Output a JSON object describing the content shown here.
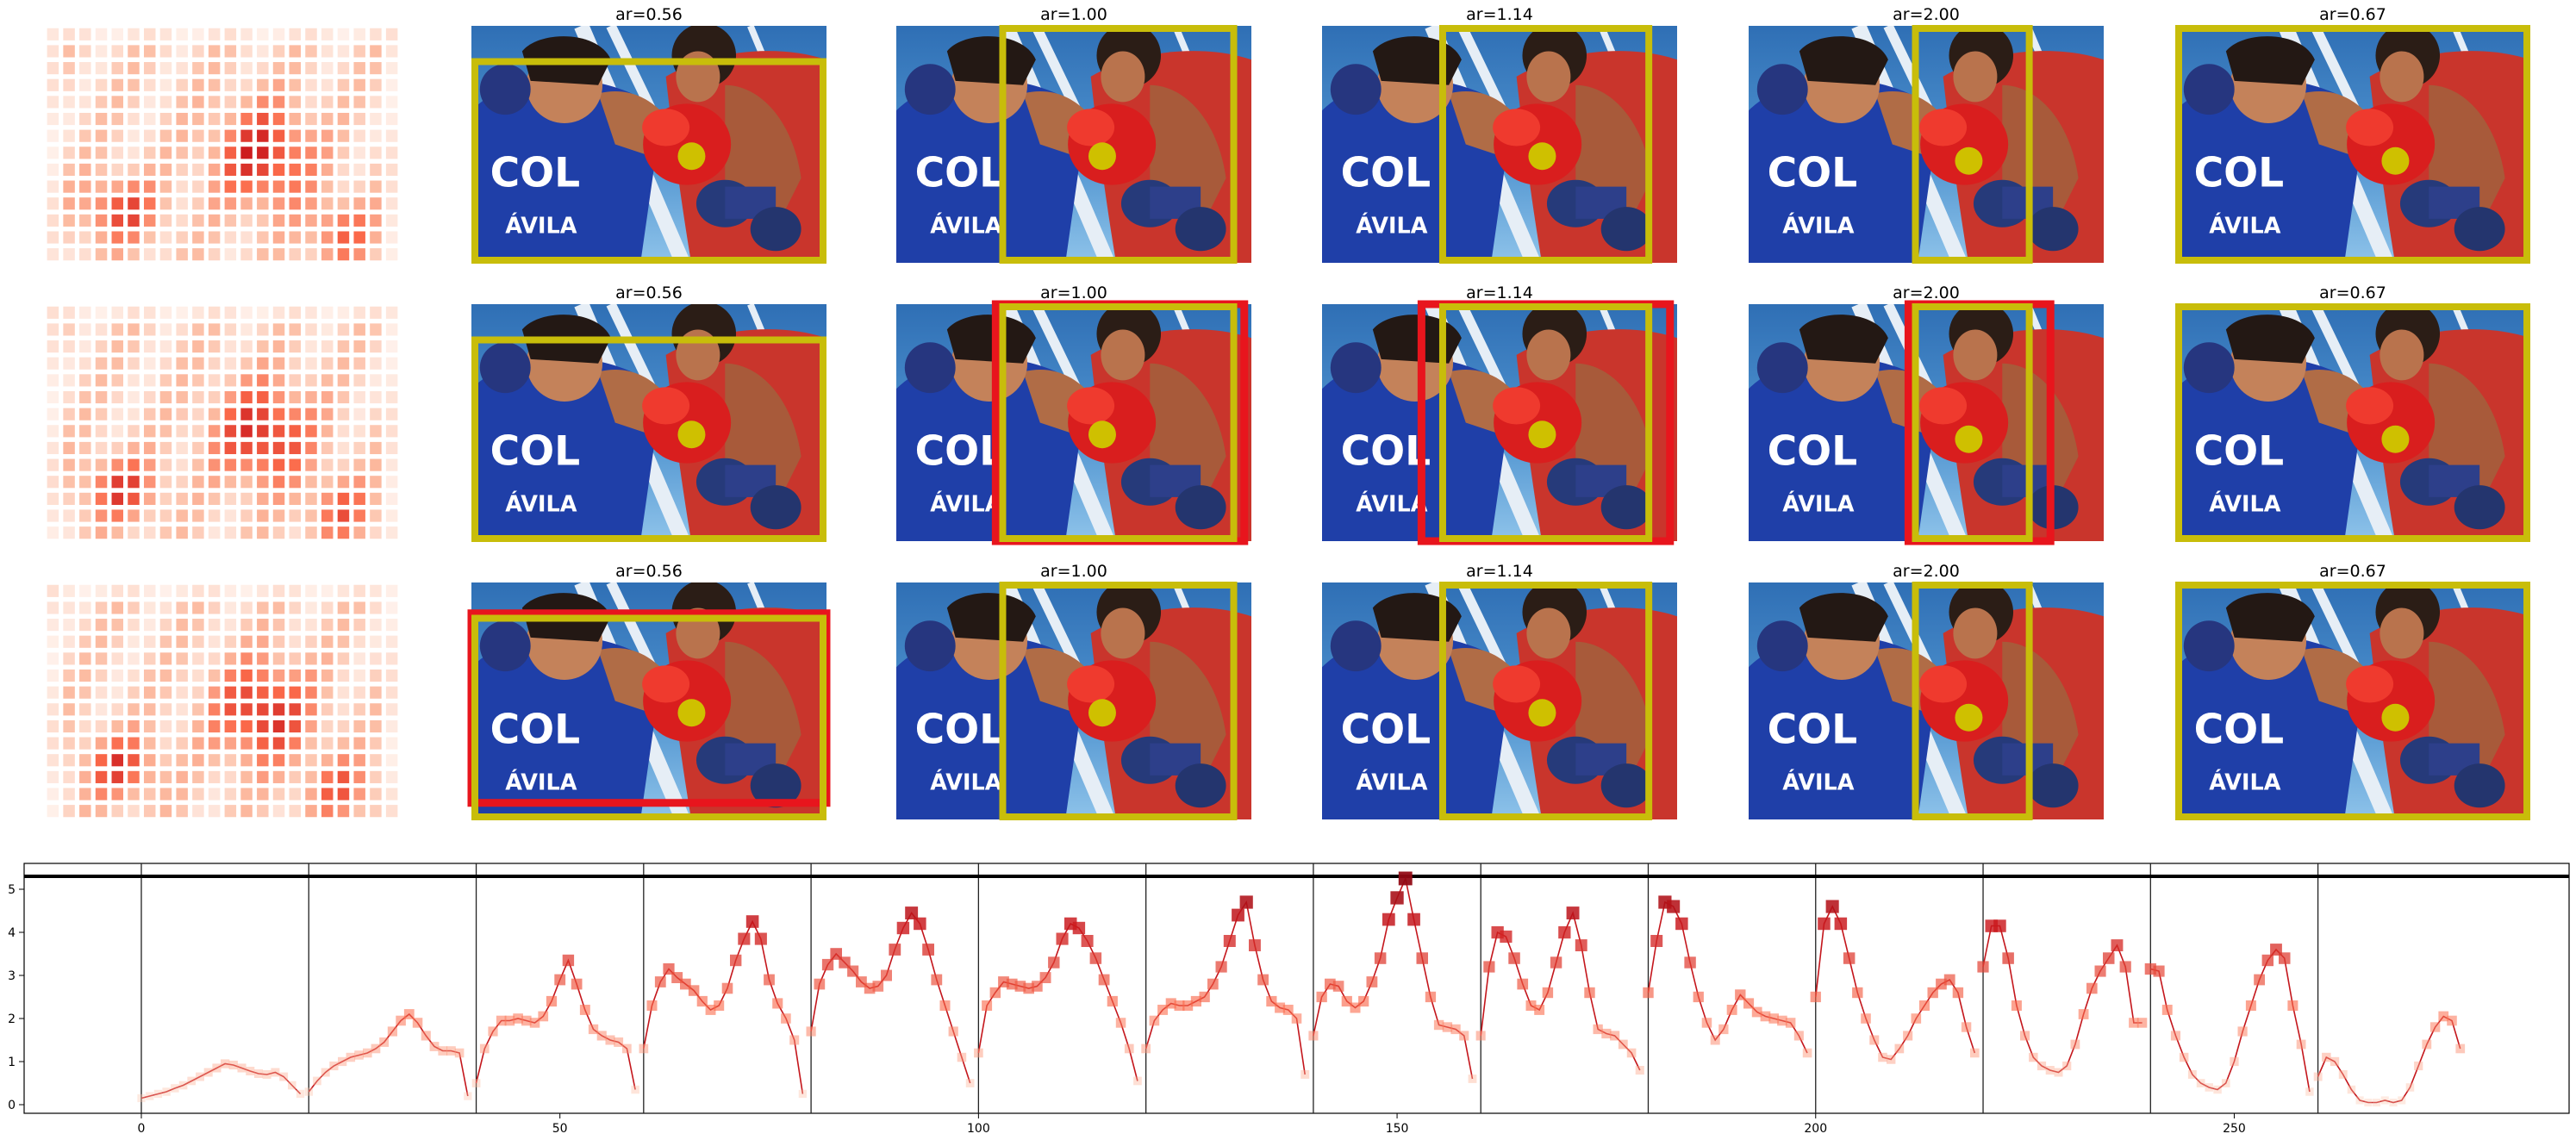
{
  "figure": {
    "rows": [
      {
        "panels": [
          {
            "title": "ar=0.56",
            "red_rect": false
          },
          {
            "title": "ar=1.00",
            "red_rect": false
          },
          {
            "title": "ar=1.14",
            "red_rect": false
          },
          {
            "title": "ar=2.00",
            "red_rect": false
          },
          {
            "title": "ar=0.67",
            "red_rect": false
          }
        ]
      },
      {
        "panels": [
          {
            "title": "ar=0.56",
            "red_rect": false
          },
          {
            "title": "ar=1.00",
            "red_rect": true
          },
          {
            "title": "ar=1.14",
            "red_rect": true
          },
          {
            "title": "ar=2.00",
            "red_rect": true
          },
          {
            "title": "ar=0.67",
            "red_rect": false
          }
        ]
      },
      {
        "panels": [
          {
            "title": "ar=0.56",
            "red_rect": true
          },
          {
            "title": "ar=1.00",
            "red_rect": false
          },
          {
            "title": "ar=1.14",
            "red_rect": false
          },
          {
            "title": "ar=2.00",
            "red_rect": false
          },
          {
            "title": "ar=0.67",
            "red_rect": false
          }
        ]
      }
    ],
    "colors": {
      "crop_box": "#c8bd0a",
      "reference_box": "#e8151d",
      "focus_dot": "#cfc000",
      "line": "#c4161c",
      "marker_strong": "#b2182b",
      "marker_weak": "#fcbba1"
    }
  },
  "chart_data": {
    "type": "line",
    "title": "",
    "xlabel": "",
    "ylabel": "",
    "xlim": [
      -14,
      290
    ],
    "ylim": [
      -0.2,
      5.6
    ],
    "xticks": [
      0,
      50,
      100,
      150,
      200,
      250
    ],
    "yticks": [
      0,
      1,
      2,
      3,
      4,
      5
    ],
    "segment_boundaries": [
      0,
      20,
      40,
      60,
      80,
      100,
      120,
      140,
      160,
      180,
      200,
      220,
      240,
      260
    ],
    "threshold": 5.3,
    "segments": [
      {
        "x_start": 0,
        "values": [
          0.15,
          0.2,
          0.25,
          0.3,
          0.38,
          0.45,
          0.55,
          0.65,
          0.75,
          0.85,
          0.95,
          0.92,
          0.85,
          0.78,
          0.72,
          0.7,
          0.75,
          0.65,
          0.45,
          0.25
        ]
      },
      {
        "x_start": 20,
        "values": [
          0.3,
          0.55,
          0.75,
          0.9,
          1.0,
          1.1,
          1.15,
          1.2,
          1.3,
          1.45,
          1.7,
          1.95,
          2.1,
          1.9,
          1.6,
          1.35,
          1.25,
          1.25,
          1.2,
          0.2
        ]
      },
      {
        "x_start": 40,
        "values": [
          0.5,
          1.3,
          1.7,
          1.95,
          1.95,
          2.0,
          1.95,
          1.9,
          2.05,
          2.4,
          2.9,
          3.35,
          2.8,
          2.2,
          1.75,
          1.6,
          1.5,
          1.45,
          1.3,
          0.35
        ]
      },
      {
        "x_start": 60,
        "values": [
          1.3,
          2.3,
          2.85,
          3.15,
          2.95,
          2.8,
          2.65,
          2.4,
          2.2,
          2.3,
          2.7,
          3.35,
          3.85,
          4.25,
          3.85,
          2.9,
          2.35,
          2.0,
          1.5,
          0.25
        ]
      },
      {
        "x_start": 80,
        "values": [
          1.7,
          2.8,
          3.25,
          3.5,
          3.3,
          3.1,
          2.85,
          2.7,
          2.75,
          3.0,
          3.6,
          4.1,
          4.45,
          4.2,
          3.6,
          2.9,
          2.3,
          1.7,
          1.1,
          0.5
        ]
      },
      {
        "x_start": 100,
        "values": [
          1.2,
          2.3,
          2.6,
          2.85,
          2.8,
          2.75,
          2.7,
          2.75,
          2.95,
          3.3,
          3.85,
          4.2,
          4.1,
          3.8,
          3.4,
          2.9,
          2.4,
          1.9,
          1.3,
          0.55
        ]
      },
      {
        "x_start": 120,
        "values": [
          1.3,
          1.95,
          2.2,
          2.35,
          2.3,
          2.3,
          2.4,
          2.5,
          2.8,
          3.2,
          3.8,
          4.4,
          4.7,
          3.7,
          2.9,
          2.4,
          2.25,
          2.2,
          2.0,
          0.7
        ]
      },
      {
        "x_start": 140,
        "values": [
          1.6,
          2.5,
          2.8,
          2.75,
          2.4,
          2.25,
          2.4,
          2.85,
          3.4,
          4.3,
          4.8,
          5.25,
          4.3,
          3.4,
          2.5,
          1.85,
          1.8,
          1.75,
          1.6,
          0.6
        ]
      },
      {
        "x_start": 160,
        "values": [
          1.6,
          3.2,
          4.0,
          3.9,
          3.4,
          2.8,
          2.3,
          2.2,
          2.6,
          3.3,
          4.0,
          4.45,
          3.7,
          2.6,
          1.75,
          1.65,
          1.6,
          1.4,
          1.2,
          0.8
        ]
      },
      {
        "x_start": 180,
        "values": [
          2.6,
          3.8,
          4.7,
          4.6,
          4.2,
          3.3,
          2.5,
          1.9,
          1.5,
          1.75,
          2.2,
          2.55,
          2.35,
          2.15,
          2.05,
          2.0,
          1.95,
          1.9,
          1.6,
          1.2
        ]
      },
      {
        "x_start": 200,
        "values": [
          2.5,
          4.2,
          4.6,
          4.2,
          3.4,
          2.6,
          2.0,
          1.5,
          1.1,
          1.05,
          1.3,
          1.6,
          2.0,
          2.3,
          2.6,
          2.8,
          2.9,
          2.6,
          1.8,
          1.2
        ]
      },
      {
        "x_start": 220,
        "values": [
          3.2,
          4.15,
          4.15,
          3.4,
          2.3,
          1.6,
          1.1,
          0.9,
          0.8,
          0.75,
          0.9,
          1.4,
          2.1,
          2.7,
          3.1,
          3.4,
          3.7,
          3.2,
          1.9,
          1.9
        ]
      },
      {
        "x_start": 240,
        "values": [
          3.15,
          3.1,
          2.2,
          1.6,
          1.1,
          0.7,
          0.5,
          0.4,
          0.35,
          0.5,
          1.0,
          1.7,
          2.3,
          2.9,
          3.35,
          3.6,
          3.4,
          2.3,
          1.4,
          0.3
        ]
      },
      {
        "x_start": 260,
        "values": [
          0.65,
          1.1,
          1.0,
          0.7,
          0.35,
          0.1,
          0.05,
          0.05,
          0.1,
          0.05,
          0.1,
          0.4,
          0.9,
          1.4,
          1.8,
          2.05,
          1.95,
          1.3
        ]
      }
    ]
  }
}
